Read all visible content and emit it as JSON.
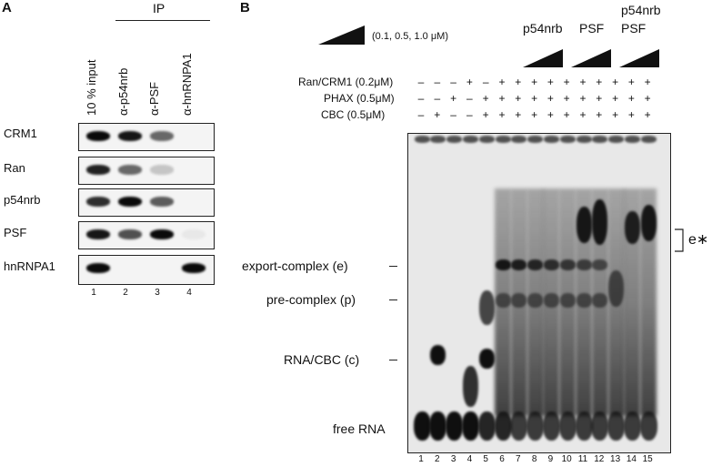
{
  "panelA": {
    "letter": "A",
    "ip_label": "IP",
    "columns": [
      "10 % input",
      "α-p54nrb",
      "α-PSF",
      "α-hnRNPA1"
    ],
    "rows": [
      "CRM1",
      "Ran",
      "p54nrb",
      "PSF",
      "hnRNPA1"
    ],
    "lanes": [
      "1",
      "2",
      "3",
      "4"
    ],
    "band_intensity": [
      [
        1.0,
        0.95,
        0.6,
        0
      ],
      [
        0.9,
        0.6,
        0.2,
        0
      ],
      [
        0.85,
        1.0,
        0.65,
        0
      ],
      [
        0.95,
        0.7,
        1.0,
        0.05
      ],
      [
        1.0,
        0,
        0,
        1.0
      ]
    ]
  },
  "panelB": {
    "letter": "B",
    "conc_label": "(0.1, 0.5, 1.0 μM)",
    "titration_labels": [
      "p54nrb",
      "PSF",
      "p54nrb",
      "PSF"
    ],
    "conditions": [
      {
        "label": "Ran/CRM1 (0.2μM)",
        "symbols": [
          "–",
          "–",
          "–",
          "+",
          "–",
          "+",
          "+",
          "+",
          "+",
          "+",
          "+",
          "+",
          "+",
          "+",
          "+"
        ]
      },
      {
        "label": "PHAX (0.5μM)",
        "symbols": [
          "–",
          "–",
          "+",
          "–",
          "+",
          "+",
          "+",
          "+",
          "+",
          "+",
          "+",
          "+",
          "+",
          "+",
          "+"
        ]
      },
      {
        "label": "CBC (0.5μM)",
        "symbols": [
          "–",
          "+",
          "–",
          "–",
          "+",
          "+",
          "+",
          "+",
          "+",
          "+",
          "+",
          "+",
          "+",
          "+",
          "+"
        ]
      }
    ],
    "band_labels": [
      "export-complex (e)",
      "pre-complex (p)",
      "RNA/CBC (c)",
      "free RNA"
    ],
    "estar_label": "e∗",
    "lanes": [
      "1",
      "2",
      "3",
      "4",
      "5",
      "6",
      "7",
      "8",
      "9",
      "10",
      "11",
      "12",
      "13",
      "14",
      "15"
    ]
  }
}
